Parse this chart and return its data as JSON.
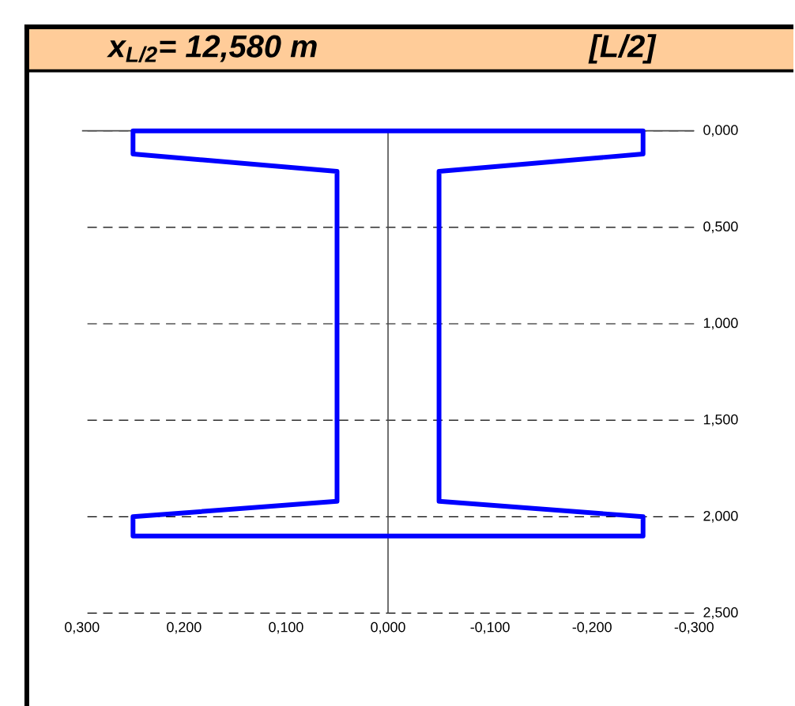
{
  "chart_data": {
    "type": "line",
    "title": "x$_{L/2}$= 12,580 m",
    "annotations": [
      "[L/2]"
    ],
    "series": [
      {
        "color": "#0000ff",
        "x": [
          0,
          -0.25,
          -0.25,
          -0.05,
          -0.05,
          -0.25,
          -0.25,
          0,
          null,
          0,
          0.25,
          0.25,
          0.05,
          0.05,
          0.25,
          0.25,
          0
        ],
        "values": [
          0,
          0,
          0.12,
          0.21,
          1.92,
          2.0,
          2.1,
          2.1,
          null,
          2.1,
          2.1,
          2.0,
          1.92,
          0.21,
          0.12,
          0,
          0
        ]
      }
    ],
    "xlim": [
      0.3,
      -0.3
    ],
    "ylim": [
      2.5,
      0
    ],
    "xticks": [
      {
        "value": 0.3,
        "label": "0,300"
      },
      {
        "value": 0.2,
        "label": "0,200"
      },
      {
        "value": 0.1,
        "label": "0,100"
      },
      {
        "value": 0,
        "label": "0,000"
      },
      {
        "value": -0.1,
        "label": "-0,100"
      },
      {
        "value": -0.2,
        "label": "-0,200"
      },
      {
        "value": -0.3,
        "label": "-0,300"
      }
    ],
    "yticks": [
      {
        "value": 0,
        "label": "0,000"
      },
      {
        "value": 0.5,
        "label": "0,500"
      },
      {
        "value": 1,
        "label": "1,000"
      },
      {
        "value": 1.5,
        "label": "1,500"
      },
      {
        "value": 2,
        "label": "2,000"
      },
      {
        "value": 2.5,
        "label": "2,500"
      }
    ],
    "grid": "y",
    "line_style": "solid",
    "marker": "none"
  }
}
